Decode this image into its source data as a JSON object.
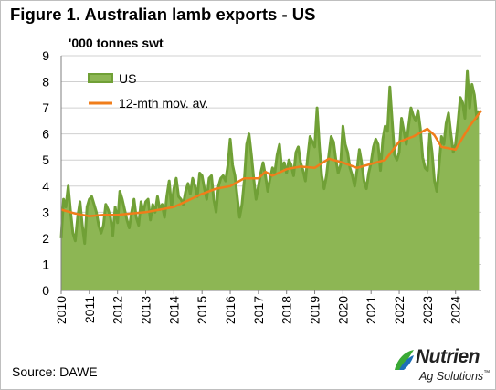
{
  "title": "Figure 1. Australian lamb exports - US",
  "unit_label": "'000 tonnes swt",
  "source": "Source: DAWE",
  "logo": {
    "word": "Nutrien",
    "sub": "Ag Solutions",
    "trademark": "™"
  },
  "colors": {
    "area_fill": "#8db654",
    "area_line": "#70a036",
    "moving_avg": "#f07d1a",
    "gridline": "#d0d0d0"
  },
  "chart_data": {
    "type": "area",
    "xlabel": "",
    "ylabel": "'000 tonnes swt",
    "ylim": [
      0,
      9
    ],
    "xlim": [
      2010,
      2024.917
    ],
    "y_ticks": [
      0,
      1,
      2,
      3,
      4,
      5,
      6,
      7,
      8,
      9
    ],
    "x_ticks": [
      "2010",
      "2011",
      "2012",
      "2013",
      "2014",
      "2015",
      "2016",
      "2017",
      "2018",
      "2019",
      "2020",
      "2021",
      "2022",
      "2023",
      "2024"
    ],
    "grid": "horizontal",
    "legend": {
      "placement": "top-left",
      "entries": [
        "US",
        "12-mth mov. av."
      ]
    },
    "series": [
      {
        "name": "US",
        "type": "area",
        "start_year": 2010,
        "frequency": "monthly",
        "values": [
          2.0,
          3.5,
          3.2,
          4.0,
          3.0,
          2.2,
          1.9,
          2.8,
          3.4,
          2.5,
          1.8,
          3.2,
          3.5,
          3.6,
          3.3,
          3.0,
          2.5,
          2.2,
          2.5,
          3.3,
          3.1,
          2.8,
          2.1,
          3.2,
          2.6,
          3.8,
          3.5,
          3.1,
          2.7,
          2.4,
          3.0,
          3.5,
          2.8,
          2.5,
          3.4,
          3.0,
          3.4,
          3.5,
          2.7,
          3.3,
          3.0,
          3.6,
          3.1,
          3.3,
          2.8,
          3.6,
          4.2,
          3.2,
          3.9,
          4.3,
          3.6,
          3.5,
          3.3,
          3.8,
          4.1,
          3.7,
          4.3,
          4.0,
          3.6,
          4.5,
          4.4,
          3.9,
          3.5,
          4.3,
          4.4,
          3.5,
          3.0,
          4.0,
          4.3,
          4.4,
          4.2,
          4.8,
          5.8,
          4.8,
          4.4,
          3.6,
          2.8,
          3.3,
          4.2,
          5.6,
          6.0,
          5.2,
          4.3,
          3.5,
          4.0,
          4.5,
          4.9,
          4.4,
          3.8,
          4.3,
          4.7,
          4.5,
          5.2,
          5.6,
          4.6,
          4.9,
          4.5,
          5.0,
          4.8,
          4.4,
          5.3,
          5.5,
          4.9,
          4.6,
          4.2,
          5.1,
          5.9,
          5.7,
          5.5,
          7.0,
          5.5,
          4.4,
          3.9,
          4.4,
          5.2,
          5.9,
          5.7,
          5.0,
          4.5,
          4.8,
          6.3,
          5.6,
          5.3,
          4.7,
          4.4,
          4.0,
          4.6,
          5.4,
          4.9,
          4.2,
          3.9,
          4.5,
          4.9,
          5.5,
          5.8,
          5.6,
          4.6,
          5.8,
          6.3,
          6.1,
          7.8,
          6.5,
          5.2,
          5.0,
          5.3,
          6.6,
          6.1,
          5.6,
          6.3,
          7.0,
          6.7,
          6.5,
          6.9,
          6.2,
          5.1,
          4.7,
          4.6,
          6.0,
          5.3,
          4.2,
          3.8,
          4.8,
          5.9,
          5.6,
          6.4,
          6.8,
          6.0,
          5.3,
          5.6,
          6.4,
          7.4,
          7.2,
          6.6,
          8.4,
          7.0,
          7.9,
          7.5,
          6.6,
          6.9
        ]
      },
      {
        "name": "12-mth mov. av.",
        "type": "line",
        "anchor_years": [
          2010.0,
          2010.5,
          2011.0,
          2011.5,
          2012.0,
          2012.5,
          2013.0,
          2013.5,
          2014.0,
          2014.5,
          2015.0,
          2015.5,
          2016.0,
          2016.25,
          2016.5,
          2017.0,
          2017.25,
          2017.5,
          2018.0,
          2018.5,
          2019.0,
          2019.5,
          2020.0,
          2020.5,
          2021.0,
          2021.5,
          2022.0,
          2022.5,
          2023.0,
          2023.25,
          2023.5,
          2024.0,
          2024.5,
          2024.917
        ],
        "values": [
          3.1,
          2.95,
          2.85,
          2.9,
          2.9,
          2.95,
          3.0,
          3.1,
          3.2,
          3.45,
          3.7,
          3.9,
          4.0,
          4.15,
          4.3,
          4.3,
          4.55,
          4.4,
          4.65,
          4.75,
          4.7,
          5.05,
          4.9,
          4.7,
          4.85,
          5.0,
          5.7,
          5.9,
          6.2,
          5.95,
          5.5,
          5.4,
          6.3,
          6.9
        ]
      }
    ]
  }
}
